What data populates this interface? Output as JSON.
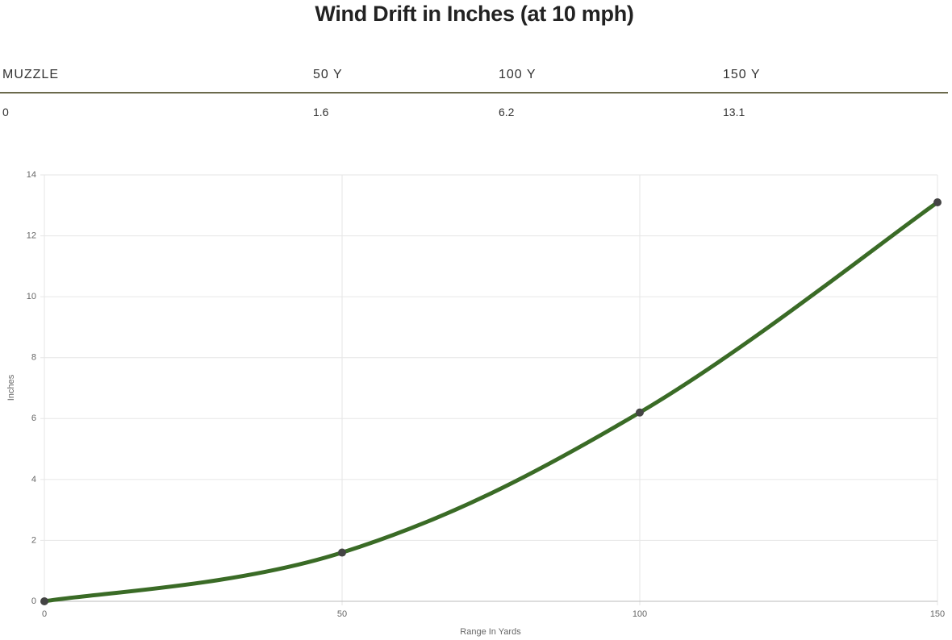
{
  "header": {
    "title": "Wind Drift in Inches (at 10 mph)"
  },
  "table": {
    "columns": [
      "MUZZLE",
      "50 Y",
      "100 Y",
      "150 Y"
    ],
    "rows": [
      [
        0,
        1.6,
        6.2,
        13.1
      ]
    ]
  },
  "chart_data": {
    "type": "line",
    "x": [
      0,
      50,
      100,
      150
    ],
    "series": [
      {
        "color": "#3a6b26",
        "values": [
          0,
          1.6,
          6.2,
          13.1
        ]
      }
    ],
    "marker_color": "#444444",
    "xlabel": "Range In Yards",
    "ylabel": "Inches",
    "xlim": [
      0,
      150
    ],
    "xticks": [
      0,
      50,
      100,
      150
    ],
    "ylim": [
      0,
      14
    ],
    "yticks": [
      0,
      2,
      4,
      6,
      8,
      10,
      12,
      14
    ],
    "grid": true
  }
}
